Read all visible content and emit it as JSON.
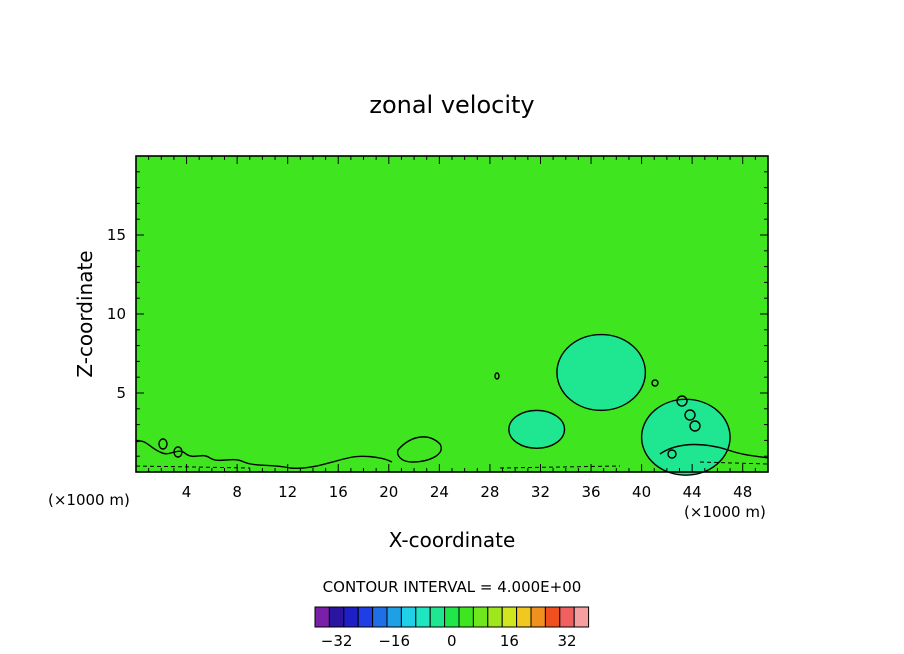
{
  "chart_data": {
    "type": "heatmap",
    "title": "zonal velocity",
    "xlabel": "X-coordinate",
    "ylabel": "Z-coordinate",
    "x_unit_label_left": "(×1000 m)",
    "x_unit_label_right": "(×1000 m)",
    "xlim": [
      0,
      50
    ],
    "ylim": [
      0,
      20
    ],
    "x_ticks": [
      4,
      8,
      12,
      16,
      20,
      24,
      28,
      32,
      36,
      40,
      44,
      48
    ],
    "y_ticks": [
      5,
      10,
      15
    ],
    "contour_interval_label": "CONTOUR INTERVAL = 4.000E+00",
    "background_value": 0,
    "colorbar": {
      "values": [
        -36,
        -32,
        -28,
        -24,
        -20,
        -16,
        -12,
        -8,
        -4,
        0,
        4,
        8,
        12,
        16,
        20,
        24,
        28,
        32,
        36
      ],
      "tick_labels": [
        -32,
        -16,
        0,
        16,
        32
      ],
      "colors": [
        "#7a1fa8",
        "#2a14a0",
        "#1f1fc8",
        "#1f3fe6",
        "#1f6fe6",
        "#1fa0e6",
        "#1fd0e6",
        "#1fe6c0",
        "#1fe690",
        "#1fe64a",
        "#3fe61f",
        "#70e61f",
        "#a0e61f",
        "#d0e61f",
        "#f0c81f",
        "#f0901f",
        "#f0501f",
        "#f06060",
        "#f5a0a0"
      ]
    },
    "features": [
      {
        "name": "upper-anomaly",
        "x_center": 36.8,
        "z_center": 6.3,
        "x_radius": 3.5,
        "z_radius": 2.4,
        "value": -4
      },
      {
        "name": "mid-anomaly",
        "x_center": 31.7,
        "z_center": 2.7,
        "x_radius": 2.2,
        "z_radius": 1.2,
        "value": -4
      },
      {
        "name": "right-anomaly",
        "x_center": 43.5,
        "z_center": 2.2,
        "x_radius": 3.5,
        "z_radius": 2.4,
        "value": -4
      }
    ]
  }
}
